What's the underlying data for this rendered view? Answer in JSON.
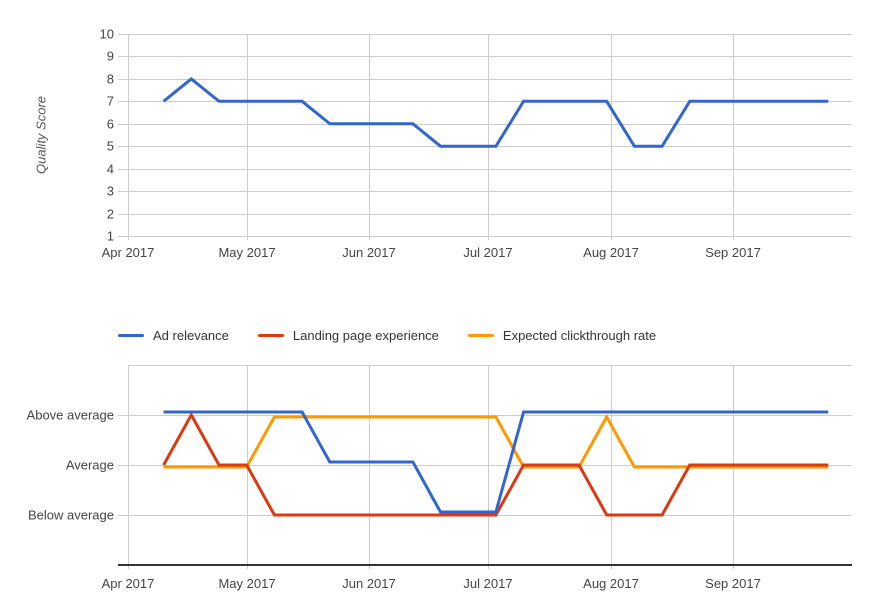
{
  "colors": {
    "grid": "#cccccc",
    "baseline_axis": "#333333",
    "tick_text": "#444444",
    "legend_text": "#333333",
    "axis_title_text": "#555555",
    "background": "#ffffff"
  },
  "chart_data": [
    {
      "id": "quality-score-history",
      "type": "line",
      "title": "",
      "xlabel": "",
      "ylabel": "Quality Score",
      "legend_position": "none",
      "grid": true,
      "ylim": [
        1,
        10
      ],
      "y_grid": [
        1,
        2,
        3,
        4,
        5,
        6,
        7,
        8,
        9,
        10
      ],
      "y_ticks": [
        {
          "label": "10",
          "value": 10
        },
        {
          "label": "9",
          "value": 9
        },
        {
          "label": "8",
          "value": 8
        },
        {
          "label": "7",
          "value": 7
        },
        {
          "label": "6",
          "value": 6
        },
        {
          "label": "5",
          "value": 5
        },
        {
          "label": "4",
          "value": 4
        },
        {
          "label": "3",
          "value": 3
        },
        {
          "label": "2",
          "value": 2
        },
        {
          "label": "1",
          "value": 1
        }
      ],
      "x_range": [
        "2017-04-01",
        "2017-10-01"
      ],
      "x_ticks": [
        {
          "label": "Apr 2017",
          "date": "2017-04-01"
        },
        {
          "label": "May 2017",
          "date": "2017-05-01"
        },
        {
          "label": "Jun 2017",
          "date": "2017-06-01"
        },
        {
          "label": "Jul 2017",
          "date": "2017-07-01"
        },
        {
          "label": "Aug 2017",
          "date": "2017-08-01"
        },
        {
          "label": "Sep 2017",
          "date": "2017-09-01"
        }
      ],
      "x": [
        "2017-04-10",
        "2017-04-17",
        "2017-04-24",
        "2017-05-01",
        "2017-05-08",
        "2017-05-15",
        "2017-05-22",
        "2017-05-29",
        "2017-06-05",
        "2017-06-12",
        "2017-06-19",
        "2017-06-26",
        "2017-07-03",
        "2017-07-10",
        "2017-07-17",
        "2017-07-24",
        "2017-07-31",
        "2017-08-07",
        "2017-08-14",
        "2017-08-21",
        "2017-08-28",
        "2017-09-04",
        "2017-09-11",
        "2017-09-18",
        "2017-09-25"
      ],
      "series": [
        {
          "name": "Quality Score",
          "color": "#3366CC",
          "values": [
            7,
            8,
            7,
            7,
            7,
            7,
            6,
            6,
            6,
            6,
            5,
            5,
            5,
            7,
            7,
            7,
            7,
            5,
            5,
            7,
            7,
            7,
            7,
            7,
            7
          ]
        }
      ]
    },
    {
      "id": "quality-score-components-history",
      "type": "line",
      "title": "",
      "xlabel": "",
      "ylabel": "",
      "legend_position": "top",
      "grid": true,
      "y_type": "categorical",
      "y_categories": [
        "Below average",
        "Average",
        "Above average"
      ],
      "value_map": {
        "Below average": 1,
        "Average": 2,
        "Above average": 3
      },
      "ylim": [
        0,
        4
      ],
      "y_grid": [
        0,
        1,
        2,
        3,
        4
      ],
      "y_ticks": [
        {
          "label": "Above average",
          "value": 3
        },
        {
          "label": "Average",
          "value": 2
        },
        {
          "label": "Below average",
          "value": 1
        }
      ],
      "x_range": [
        "2017-04-01",
        "2017-10-01"
      ],
      "x_ticks": [
        {
          "label": "Apr 2017",
          "date": "2017-04-01"
        },
        {
          "label": "May 2017",
          "date": "2017-05-01"
        },
        {
          "label": "Jun 2017",
          "date": "2017-06-01"
        },
        {
          "label": "Jul 2017",
          "date": "2017-07-01"
        },
        {
          "label": "Aug 2017",
          "date": "2017-08-01"
        },
        {
          "label": "Sep 2017",
          "date": "2017-09-01"
        }
      ],
      "x": [
        "2017-04-10",
        "2017-04-17",
        "2017-04-24",
        "2017-05-01",
        "2017-05-08",
        "2017-05-15",
        "2017-05-22",
        "2017-05-29",
        "2017-06-05",
        "2017-06-12",
        "2017-06-19",
        "2017-06-26",
        "2017-07-03",
        "2017-07-10",
        "2017-07-17",
        "2017-07-24",
        "2017-07-31",
        "2017-08-07",
        "2017-08-14",
        "2017-08-21",
        "2017-08-28",
        "2017-09-04",
        "2017-09-11",
        "2017-09-18",
        "2017-09-25"
      ],
      "series": [
        {
          "name": "Ad relevance",
          "color": "#3366CC",
          "values": [
            "Above average",
            "Above average",
            "Above average",
            "Above average",
            "Above average",
            "Above average",
            "Average",
            "Average",
            "Average",
            "Average",
            "Below average",
            "Below average",
            "Below average",
            "Above average",
            "Above average",
            "Above average",
            "Above average",
            "Above average",
            "Above average",
            "Above average",
            "Above average",
            "Above average",
            "Above average",
            "Above average",
            "Above average"
          ]
        },
        {
          "name": "Landing page experience",
          "color": "#DC3912",
          "values": [
            "Average",
            "Above average",
            "Average",
            "Average",
            "Below average",
            "Below average",
            "Below average",
            "Below average",
            "Below average",
            "Below average",
            "Below average",
            "Below average",
            "Below average",
            "Average",
            "Average",
            "Average",
            "Below average",
            "Below average",
            "Below average",
            "Average",
            "Average",
            "Average",
            "Average",
            "Average",
            "Average"
          ]
        },
        {
          "name": "Expected clickthrough rate",
          "color": "#FF9900",
          "values": [
            "Average",
            "Average",
            "Average",
            "Average",
            "Above average",
            "Above average",
            "Above average",
            "Above average",
            "Above average",
            "Above average",
            "Above average",
            "Above average",
            "Above average",
            "Average",
            "Average",
            "Average",
            "Above average",
            "Average",
            "Average",
            "Average",
            "Average",
            "Average",
            "Average",
            "Average",
            "Average"
          ]
        }
      ]
    }
  ]
}
